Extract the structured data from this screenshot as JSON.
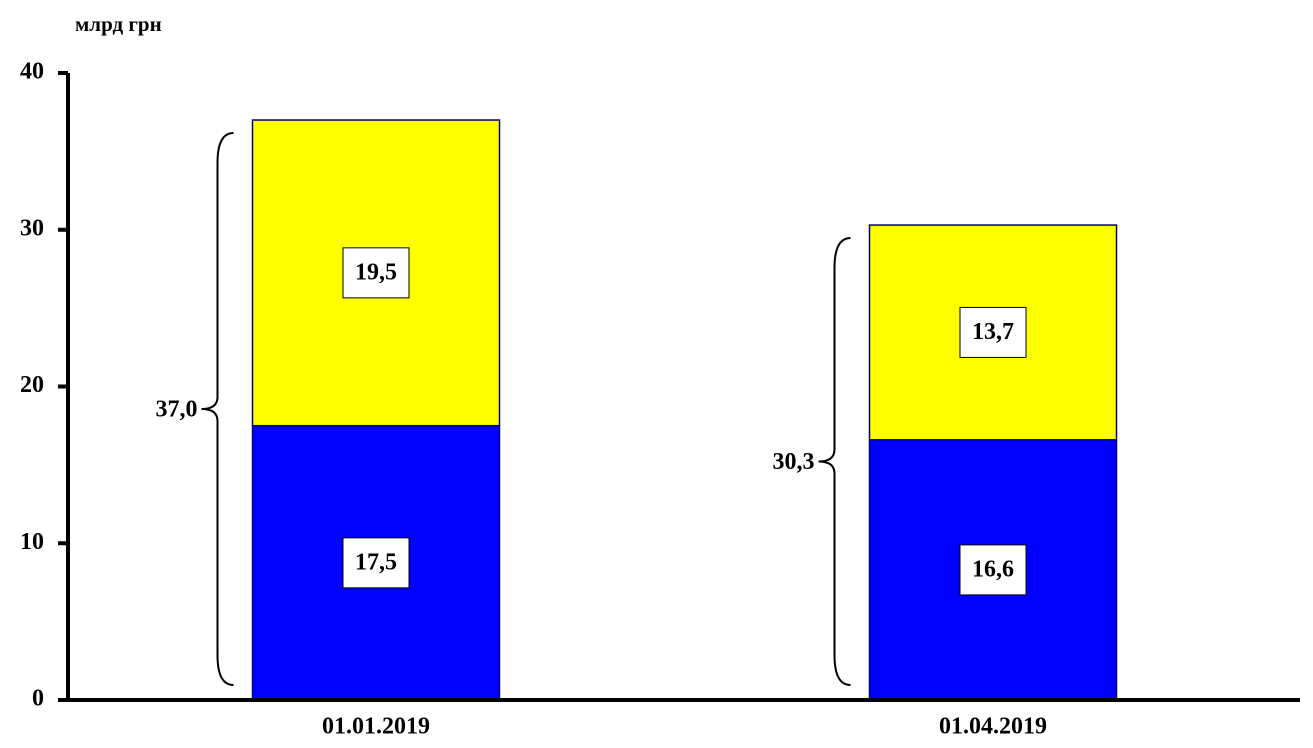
{
  "chart_data": {
    "type": "stacked-bar",
    "y_label": "млрд грн",
    "categories": [
      "01.01.2019",
      "01.04.2019"
    ],
    "series": [
      {
        "color": "#0000ff",
        "values": [
          17.5,
          16.6
        ],
        "value_labels": [
          "17,5",
          "16,6"
        ]
      },
      {
        "color": "#ffff00",
        "values": [
          19.5,
          13.7
        ],
        "value_labels": [
          "19,5",
          "13,7"
        ]
      }
    ],
    "totals": [
      37.0,
      30.3
    ],
    "total_labels": [
      "37,0",
      "30,3"
    ],
    "ylim": [
      0,
      40
    ],
    "yticks": [
      0,
      10,
      20,
      30,
      40
    ]
  }
}
